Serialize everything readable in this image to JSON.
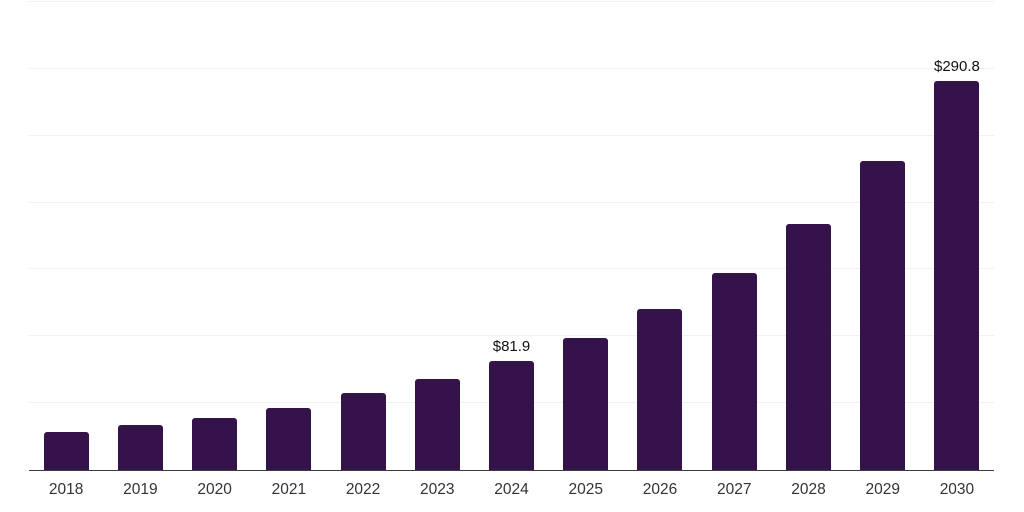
{
  "chart_data": {
    "type": "bar",
    "title": "",
    "categories": [
      "2018",
      "2019",
      "2020",
      "2021",
      "2022",
      "2023",
      "2024",
      "2025",
      "2026",
      "2027",
      "2028",
      "2029",
      "2030"
    ],
    "values": [
      28.2,
      33.5,
      39.0,
      46.4,
      57.3,
      68.3,
      81.9,
      98.5,
      120.4,
      147.7,
      183.7,
      231.4,
      290.8
    ],
    "data_labels": {
      "2024": "$81.9",
      "2030": "$290.8"
    },
    "xlabel": "",
    "ylabel": "",
    "ylim": [
      0,
      350
    ],
    "gridline_step": 50,
    "grid": true,
    "legend_position": "none",
    "bar_color": "#34124a",
    "axis_line_color": "#3c3c3c",
    "gridline_color": "#f1f1f1",
    "tick_label_color": "#333333",
    "value_label_color": "#111111",
    "background_color": "#ffffff"
  }
}
